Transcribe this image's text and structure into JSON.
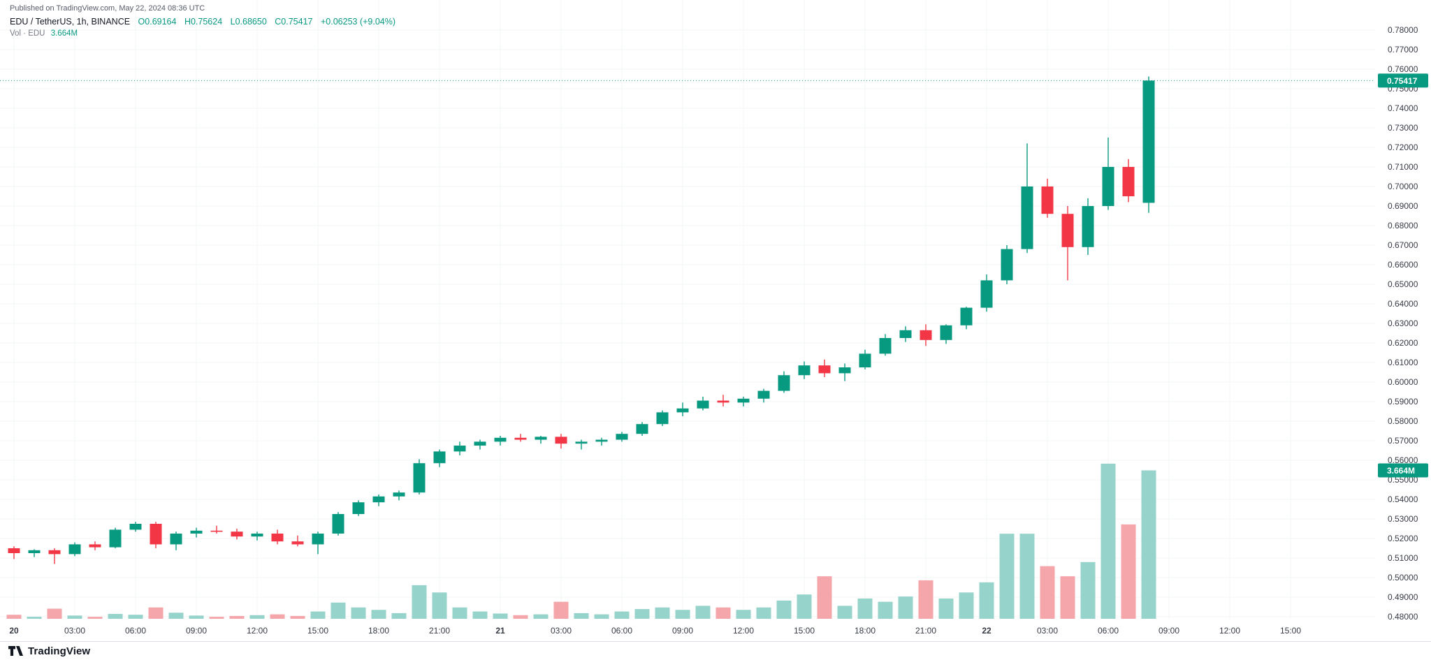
{
  "header": {
    "published": "Published on TradingView.com, May 22, 2024 08:36 UTC",
    "symbol": "EDU / TetherUS, 1h, BINANCE",
    "ohlc": {
      "open": "O0.69164",
      "high": "H0.75624",
      "low": "L0.68650",
      "close": "C0.75417",
      "change": "+0.06253 (+9.04%)"
    },
    "volume_label": "Vol · EDU",
    "volume_value": "3.664M"
  },
  "footer": {
    "brand": "TradingView"
  },
  "chart_data": {
    "type": "candlestick",
    "title": "EDU / TetherUS, 1h, BINANCE",
    "interval": "1h",
    "exchange": "BINANCE",
    "last_price": 0.75417,
    "last_price_label": "0.75417",
    "last_volume_label": "3.664M",
    "y_axis": {
      "min": 0.48,
      "max": 0.78,
      "tick_step": 0.01
    },
    "y_tick_labels": [
      "0.78000",
      "0.77000",
      "0.76000",
      "0.75000",
      "0.74000",
      "0.73000",
      "0.72000",
      "0.71000",
      "0.70000",
      "0.69000",
      "0.68000",
      "0.67000",
      "0.66000",
      "0.65000",
      "0.64000",
      "0.63000",
      "0.62000",
      "0.61000",
      "0.60000",
      "0.59000",
      "0.58000",
      "0.57000",
      "0.56000",
      "0.55000",
      "0.54000",
      "0.53000",
      "0.52000",
      "0.51000",
      "0.50000",
      "0.49000",
      "0.48000"
    ],
    "x_ticks": [
      {
        "index": 0,
        "label": "20"
      },
      {
        "index": 3,
        "label": "03:00"
      },
      {
        "index": 6,
        "label": "06:00"
      },
      {
        "index": 9,
        "label": "09:00"
      },
      {
        "index": 12,
        "label": "12:00"
      },
      {
        "index": 15,
        "label": "15:00"
      },
      {
        "index": 18,
        "label": "18:00"
      },
      {
        "index": 21,
        "label": "21:00"
      },
      {
        "index": 24,
        "label": "21"
      },
      {
        "index": 27,
        "label": "03:00"
      },
      {
        "index": 30,
        "label": "06:00"
      },
      {
        "index": 33,
        "label": "09:00"
      },
      {
        "index": 36,
        "label": "12:00"
      },
      {
        "index": 39,
        "label": "15:00"
      },
      {
        "index": 42,
        "label": "18:00"
      },
      {
        "index": 45,
        "label": "21:00"
      },
      {
        "index": 48,
        "label": "22"
      },
      {
        "index": 51,
        "label": "03:00"
      },
      {
        "index": 54,
        "label": "06:00"
      },
      {
        "index": 57,
        "label": "09:00"
      },
      {
        "index": 60,
        "label": "12:00"
      },
      {
        "index": 63,
        "label": "15:00"
      }
    ],
    "candles": [
      [
        "20 00:00",
        0.515,
        0.516,
        0.5095,
        0.5125,
        0.1
      ],
      [
        "20 01:00",
        0.5125,
        0.5145,
        0.5105,
        0.514,
        0.05
      ],
      [
        "20 02:00",
        0.514,
        0.515,
        0.507,
        0.512,
        0.25
      ],
      [
        "20 03:00",
        0.512,
        0.518,
        0.511,
        0.517,
        0.08
      ],
      [
        "20 04:00",
        0.517,
        0.5185,
        0.514,
        0.5155,
        0.05
      ],
      [
        "20 05:00",
        0.5155,
        0.5255,
        0.515,
        0.5245,
        0.12
      ],
      [
        "20 06:00",
        0.5245,
        0.5285,
        0.5235,
        0.5275,
        0.1
      ],
      [
        "20 07:00",
        0.5275,
        0.5285,
        0.515,
        0.517,
        0.28
      ],
      [
        "20 08:00",
        0.517,
        0.5235,
        0.514,
        0.5225,
        0.15
      ],
      [
        "20 09:00",
        0.5225,
        0.5255,
        0.5205,
        0.524,
        0.08
      ],
      [
        "20 10:00",
        0.524,
        0.5265,
        0.5225,
        0.5235,
        0.05
      ],
      [
        "20 11:00",
        0.5235,
        0.525,
        0.5195,
        0.521,
        0.07
      ],
      [
        "20 12:00",
        0.521,
        0.5235,
        0.519,
        0.5225,
        0.09
      ],
      [
        "20 13:00",
        0.5225,
        0.5245,
        0.517,
        0.5185,
        0.11
      ],
      [
        "20 14:00",
        0.5185,
        0.5215,
        0.516,
        0.517,
        0.07
      ],
      [
        "20 15:00",
        0.517,
        0.5235,
        0.512,
        0.5225,
        0.18
      ],
      [
        "20 16:00",
        0.5225,
        0.5335,
        0.5215,
        0.5325,
        0.4
      ],
      [
        "20 17:00",
        0.5325,
        0.5395,
        0.5315,
        0.5385,
        0.28
      ],
      [
        "20 18:00",
        0.5385,
        0.5425,
        0.5365,
        0.5415,
        0.22
      ],
      [
        "20 19:00",
        0.5415,
        0.5445,
        0.5395,
        0.5435,
        0.14
      ],
      [
        "20 20:00",
        0.5435,
        0.5605,
        0.5425,
        0.5585,
        0.83
      ],
      [
        "20 21:00",
        0.5585,
        0.5655,
        0.5565,
        0.5645,
        0.65
      ],
      [
        "20 22:00",
        0.5645,
        0.5695,
        0.5625,
        0.5675,
        0.28
      ],
      [
        "20 23:00",
        0.5675,
        0.5705,
        0.5655,
        0.5695,
        0.18
      ],
      [
        "21 00:00",
        0.5695,
        0.5725,
        0.5675,
        0.5715,
        0.13
      ],
      [
        "21 01:00",
        0.5715,
        0.5735,
        0.5695,
        0.5705,
        0.09
      ],
      [
        "21 02:00",
        0.5705,
        0.5725,
        0.5685,
        0.572,
        0.11
      ],
      [
        "21 03:00",
        0.572,
        0.5735,
        0.566,
        0.5685,
        0.42
      ],
      [
        "21 04:00",
        0.5685,
        0.5705,
        0.5655,
        0.5695,
        0.14
      ],
      [
        "21 05:00",
        0.5695,
        0.5715,
        0.5675,
        0.5705,
        0.11
      ],
      [
        "21 06:00",
        0.5705,
        0.5745,
        0.5695,
        0.5735,
        0.18
      ],
      [
        "21 07:00",
        0.5735,
        0.5795,
        0.5725,
        0.5785,
        0.24
      ],
      [
        "21 08:00",
        0.5785,
        0.5855,
        0.5775,
        0.5845,
        0.28
      ],
      [
        "21 09:00",
        0.5845,
        0.5895,
        0.5825,
        0.5865,
        0.22
      ],
      [
        "21 10:00",
        0.5865,
        0.5925,
        0.5855,
        0.5905,
        0.32
      ],
      [
        "21 11:00",
        0.5905,
        0.5935,
        0.5875,
        0.5895,
        0.28
      ],
      [
        "21 12:00",
        0.5895,
        0.5925,
        0.5875,
        0.5915,
        0.22
      ],
      [
        "21 13:00",
        0.5915,
        0.5965,
        0.5895,
        0.5955,
        0.28
      ],
      [
        "21 14:00",
        0.5955,
        0.6055,
        0.5945,
        0.6035,
        0.45
      ],
      [
        "21 15:00",
        0.6035,
        0.6105,
        0.6015,
        0.6085,
        0.6
      ],
      [
        "21 16:00",
        0.6085,
        0.6115,
        0.6025,
        0.6045,
        1.05
      ],
      [
        "21 17:00",
        0.6045,
        0.6095,
        0.6005,
        0.6075,
        0.32
      ],
      [
        "21 18:00",
        0.6075,
        0.6165,
        0.6065,
        0.6145,
        0.5
      ],
      [
        "21 19:00",
        0.6145,
        0.6245,
        0.6135,
        0.6225,
        0.42
      ],
      [
        "21 20:00",
        0.6225,
        0.6285,
        0.6205,
        0.6265,
        0.55
      ],
      [
        "21 21:00",
        0.6265,
        0.6295,
        0.6185,
        0.6215,
        0.95
      ],
      [
        "21 22:00",
        0.6215,
        0.6295,
        0.6195,
        0.629,
        0.5
      ],
      [
        "21 23:00",
        0.629,
        0.6385,
        0.627,
        0.638,
        0.65
      ],
      [
        "22 00:00",
        0.638,
        0.655,
        0.636,
        0.652,
        0.9
      ],
      [
        "22 01:00",
        0.652,
        0.67,
        0.65,
        0.668,
        2.1
      ],
      [
        "22 02:00",
        0.668,
        0.722,
        0.666,
        0.7,
        2.1
      ],
      [
        "22 03:00",
        0.7,
        0.704,
        0.684,
        0.686,
        1.3
      ],
      [
        "22 04:00",
        0.686,
        0.69,
        0.652,
        0.669,
        1.05
      ],
      [
        "22 05:00",
        0.669,
        0.694,
        0.665,
        0.69,
        1.4
      ],
      [
        "22 06:00",
        0.69,
        0.725,
        0.688,
        0.71,
        3.83
      ],
      [
        "22 07:00",
        0.71,
        0.714,
        0.692,
        0.695,
        2.33
      ],
      [
        "22 08:00",
        0.69164,
        0.75624,
        0.6865,
        0.75417,
        3.664
      ]
    ],
    "colors": {
      "up": "#089981",
      "down": "#f23645",
      "vol_up": "#96d3cb",
      "vol_down": "#f5a6ab",
      "grid": "#f3f4f6",
      "axis_text": "#363a45",
      "last_price_line": "#089981",
      "badge_bg": "#089981",
      "badge_text": "#ffffff"
    }
  }
}
